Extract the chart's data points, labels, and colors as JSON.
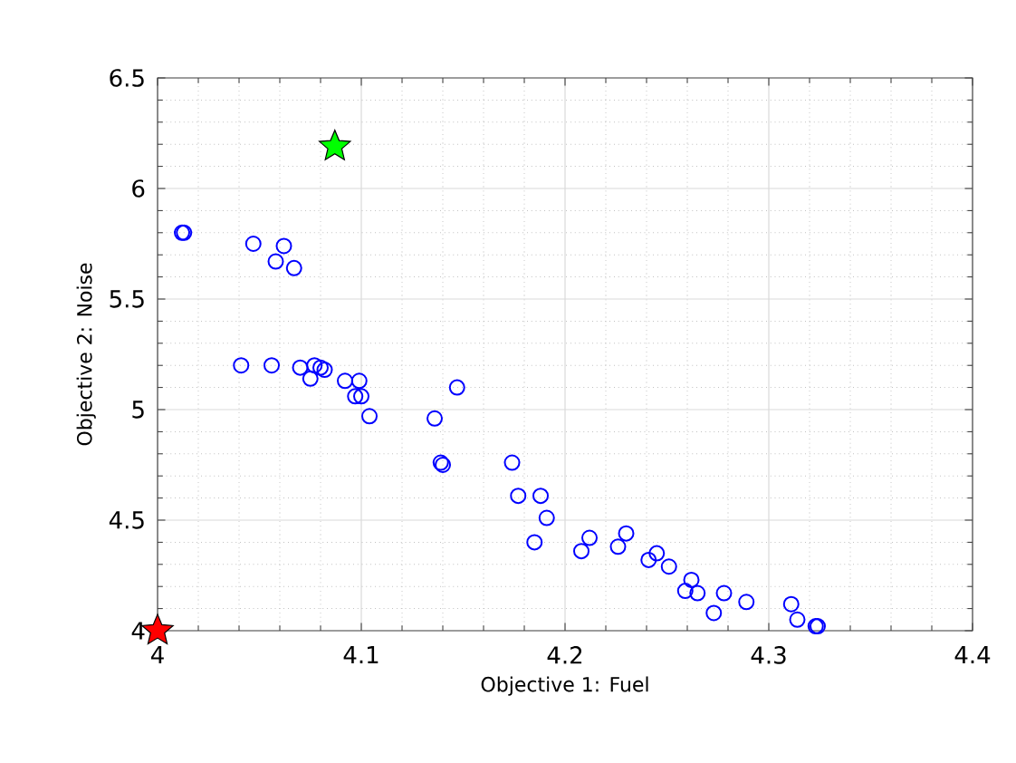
{
  "chart_data": {
    "type": "scatter",
    "xlabel": "Objective 1: Fuel",
    "ylabel": "Objective 2: Noise",
    "xlim": [
      4,
      4.4
    ],
    "ylim": [
      4,
      6.5
    ],
    "xticks": [
      4,
      4.1,
      4.2,
      4.3,
      4.4
    ],
    "yticks": [
      {
        "value": 4,
        "label": "4"
      },
      {
        "value": 4.5,
        "label": "4.5"
      },
      {
        "value": 5,
        "label": "5"
      },
      {
        "value": 5.5,
        "label": "5.5"
      },
      {
        "value": 6,
        "label": "6"
      },
      {
        "value": 6.5,
        "label": "6.5"
      }
    ],
    "grid": true,
    "series": [
      {
        "color": "#0000ff",
        "marker": "circle",
        "x": [
          4.012,
          4.013,
          4.047,
          4.062,
          4.058,
          4.067,
          4.041,
          4.056,
          4.07,
          4.077,
          4.08,
          4.075,
          4.082,
          4.092,
          4.099,
          4.097,
          4.1,
          4.104,
          4.136,
          4.147,
          4.14,
          4.139,
          4.174,
          4.177,
          4.188,
          4.191,
          4.185,
          4.208,
          4.212,
          4.226,
          4.23,
          4.241,
          4.245,
          4.251,
          4.259,
          4.262,
          4.265,
          4.273,
          4.278,
          4.289,
          4.311,
          4.314,
          4.323,
          4.324
        ],
        "values": [
          5.8,
          5.8,
          5.75,
          5.74,
          5.67,
          5.64,
          5.2,
          5.2,
          5.19,
          5.2,
          5.19,
          5.14,
          5.18,
          5.13,
          5.13,
          5.06,
          5.06,
          4.97,
          4.96,
          5.1,
          4.75,
          4.76,
          4.76,
          4.61,
          4.61,
          4.51,
          4.4,
          4.36,
          4.42,
          4.38,
          4.44,
          4.32,
          4.35,
          4.29,
          4.18,
          4.23,
          4.17,
          4.08,
          4.17,
          4.13,
          4.12,
          4.05,
          4.02,
          4.02
        ]
      },
      {
        "color": "#00ff00",
        "marker": "star",
        "x": [
          4.087
        ],
        "values": [
          6.19
        ]
      },
      {
        "color": "#ff0000",
        "marker": "star",
        "x": [
          4.0
        ],
        "values": [
          4.0
        ]
      }
    ]
  }
}
